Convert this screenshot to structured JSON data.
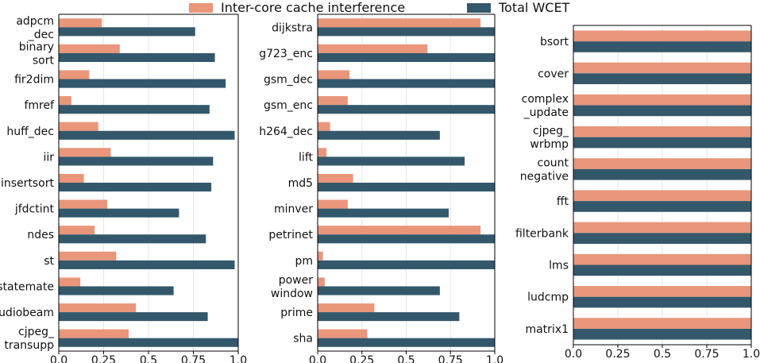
{
  "colors": {
    "interference": "#E9967A",
    "wcet": "#34586B",
    "grid": "#E6E6E6",
    "axis": "#000000"
  },
  "legend": {
    "placement": "top-center",
    "items": [
      {
        "label": "Inter-core cache interference",
        "color": "#E9967A"
      },
      {
        "label": "Total WCET",
        "color": "#34586B"
      }
    ]
  },
  "chart_data": [
    {
      "type": "bar",
      "orientation": "horizontal",
      "xlim": [
        0,
        1.0
      ],
      "xticks": [
        "0.0",
        "0.25",
        "0.5",
        "0.75",
        "1.0"
      ],
      "grid": true,
      "categories": [
        [
          "adpcm",
          "_dec"
        ],
        [
          "binary",
          "sort"
        ],
        [
          "fir2dim"
        ],
        [
          "fmref"
        ],
        [
          "huff_dec"
        ],
        [
          "iir"
        ],
        [
          "insertsort"
        ],
        [
          "jfdctint"
        ],
        [
          "ndes"
        ],
        [
          "st"
        ],
        [
          "statemate"
        ],
        [
          "audiobeam"
        ],
        [
          "cjpeg_",
          "transupp"
        ]
      ],
      "series": [
        {
          "name": "Inter-core cache interference",
          "values": [
            0.24,
            0.34,
            0.17,
            0.07,
            0.22,
            0.29,
            0.14,
            0.27,
            0.2,
            0.32,
            0.12,
            0.43,
            0.39
          ]
        },
        {
          "name": "Total WCET",
          "values": [
            0.76,
            0.87,
            0.93,
            0.84,
            0.98,
            0.86,
            0.85,
            0.67,
            0.82,
            0.98,
            0.64,
            0.83,
            1.0
          ]
        }
      ]
    },
    {
      "type": "bar",
      "orientation": "horizontal",
      "xlim": [
        0,
        1.0
      ],
      "xticks": [
        "0.0",
        "0.25",
        "0.5",
        "0.75",
        "1.0"
      ],
      "grid": true,
      "categories": [
        [
          "dijkstra"
        ],
        [
          "g723_enc"
        ],
        [
          "gsm_dec"
        ],
        [
          "gsm_enc"
        ],
        [
          "h264_dec"
        ],
        [
          "lift"
        ],
        [
          "md5"
        ],
        [
          "minver"
        ],
        [
          "petrinet"
        ],
        [
          "pm"
        ],
        [
          "power",
          "window"
        ],
        [
          "prime"
        ],
        [
          "sha"
        ]
      ],
      "series": [
        {
          "name": "Inter-core cache interference",
          "values": [
            0.92,
            0.62,
            0.18,
            0.17,
            0.07,
            0.05,
            0.2,
            0.17,
            0.92,
            0.03,
            0.04,
            0.32,
            0.28
          ]
        },
        {
          "name": "Total WCET",
          "values": [
            1.0,
            1.0,
            1.0,
            1.0,
            0.69,
            0.83,
            1.0,
            0.74,
            1.0,
            1.0,
            0.69,
            0.8,
            1.0
          ]
        }
      ]
    },
    {
      "type": "bar",
      "orientation": "horizontal",
      "xlim": [
        0,
        1.0
      ],
      "xticks": [
        "0.0",
        "0.25",
        "0.5",
        "0.75",
        "1.0"
      ],
      "grid": true,
      "categories": [
        [
          "bsort"
        ],
        [
          "cover"
        ],
        [
          "complex",
          "_update"
        ],
        [
          "cjpeg_",
          "wrbmp"
        ],
        [
          "count",
          "negative"
        ],
        [
          "fft"
        ],
        [
          "filterbank"
        ],
        [
          "lms"
        ],
        [
          "ludcmp"
        ],
        [
          "matrix1"
        ]
      ],
      "series": [
        {
          "name": "Inter-core cache interference",
          "values": [
            1.0,
            1.0,
            1.0,
            1.0,
            1.0,
            1.0,
            1.0,
            1.0,
            1.0,
            1.0
          ]
        },
        {
          "name": "Total WCET",
          "values": [
            1.0,
            1.0,
            1.0,
            1.0,
            1.0,
            1.0,
            1.0,
            1.0,
            1.0,
            1.0
          ]
        }
      ]
    }
  ]
}
